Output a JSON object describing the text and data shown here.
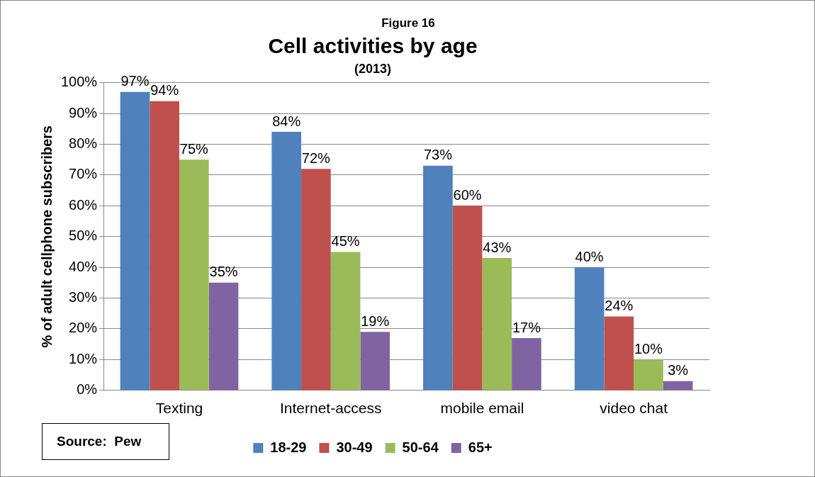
{
  "chart_data": {
    "type": "bar",
    "title": "Cell activities by age",
    "subtitle": "(2013)",
    "ylabel": "% of adult cellphone subscribers",
    "categories": [
      "Texting",
      "Internet-access",
      "mobile email",
      "video chat"
    ],
    "series": [
      {
        "name": "18-29",
        "color": "#4f81bd",
        "values": [
          97,
          84,
          73,
          40
        ],
        "value_labels": [
          "97%",
          "84%",
          "73%",
          "40%"
        ]
      },
      {
        "name": "30-49",
        "color": "#c0504d",
        "values": [
          94,
          72,
          60,
          24
        ],
        "value_labels": [
          "94%",
          "72%",
          "60%",
          "24%"
        ]
      },
      {
        "name": "50-64",
        "color": "#9bbb59",
        "values": [
          75,
          45,
          43,
          10
        ],
        "value_labels": [
          "75%",
          "45%",
          "43%",
          "10%"
        ]
      },
      {
        "name": "65+",
        "color": "#8064a2",
        "values": [
          35,
          19,
          17,
          3
        ],
        "value_labels": [
          "35%",
          "19%",
          "17%",
          "3%"
        ]
      }
    ],
    "ylim": [
      0,
      100
    ],
    "yticks": [
      {
        "value": 0,
        "label": "0%"
      },
      {
        "value": 10,
        "label": "10%"
      },
      {
        "value": 20,
        "label": "20%"
      },
      {
        "value": 30,
        "label": "30%"
      },
      {
        "value": 40,
        "label": "40%"
      },
      {
        "value": 50,
        "label": "50%"
      },
      {
        "value": 60,
        "label": "60%"
      },
      {
        "value": 70,
        "label": "70%"
      },
      {
        "value": 80,
        "label": "80%"
      },
      {
        "value": 90,
        "label": "90%"
      },
      {
        "value": 100,
        "label": "100%"
      }
    ],
    "grid": "y",
    "legend": "bottom",
    "annotations": [
      "Figure 16",
      "Source:  Pew"
    ]
  }
}
